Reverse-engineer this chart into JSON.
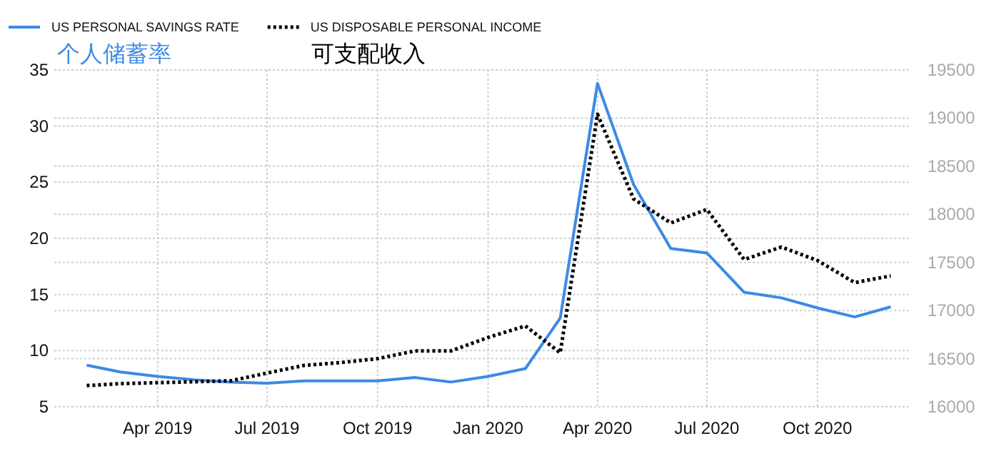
{
  "chart_data": {
    "type": "line",
    "x": [
      "2019-02",
      "2019-03",
      "2019-04",
      "2019-05",
      "2019-06",
      "2019-07",
      "2019-08",
      "2019-09",
      "2019-10",
      "2019-11",
      "2019-12",
      "2020-01",
      "2020-02",
      "2020-03",
      "2020-04",
      "2020-05",
      "2020-06",
      "2020-07",
      "2020-08",
      "2020-09",
      "2020-10",
      "2020-11",
      "2020-12"
    ],
    "series": [
      {
        "name": "US PERSONAL SAVINGS RATE",
        "color": "#3d8ae6",
        "line_style": "solid",
        "values": [
          8.7,
          8.1,
          7.7,
          7.4,
          7.2,
          7.1,
          7.3,
          7.3,
          7.3,
          7.6,
          7.2,
          7.7,
          8.4,
          12.9,
          33.8,
          24.8,
          19.1,
          18.7,
          15.2,
          14.7,
          13.8,
          13.0,
          13.9
        ]
      },
      {
        "name": "US DISPOSABLE PERSONAL INCOME",
        "color": "#000000",
        "line_style": "dotted",
        "axis": "y2",
        "values": [
          16220,
          16240,
          16250,
          16260,
          16270,
          16350,
          16430,
          16460,
          16500,
          16580,
          16580,
          16720,
          16840,
          16560,
          19040,
          18160,
          17910,
          18050,
          17530,
          17660,
          17520,
          17290,
          17360
        ]
      }
    ],
    "annotations": [
      "个人储蓄率",
      "可支配收入"
    ],
    "xlim": [
      "2019-01-05",
      "2020-12-18"
    ],
    "xticks": [
      {
        "value": "2019-04",
        "label": "Apr 2019"
      },
      {
        "value": "2019-07",
        "label": "Jul 2019"
      },
      {
        "value": "2019-10",
        "label": "Oct 2019"
      },
      {
        "value": "2020-01",
        "label": "Jan 2020"
      },
      {
        "value": "2020-04",
        "label": "Apr 2020"
      },
      {
        "value": "2020-07",
        "label": "Jul 2020"
      },
      {
        "value": "2020-10",
        "label": "Oct 2020"
      }
    ],
    "ylim": [
      5,
      35
    ],
    "yticks": [
      5,
      10,
      15,
      20,
      25,
      30,
      35
    ],
    "y2lim": [
      16000,
      19500
    ],
    "y2ticks": [
      16000,
      16500,
      17000,
      17500,
      18000,
      18500,
      19000,
      19500
    ],
    "grid": true,
    "legend": "top left"
  }
}
